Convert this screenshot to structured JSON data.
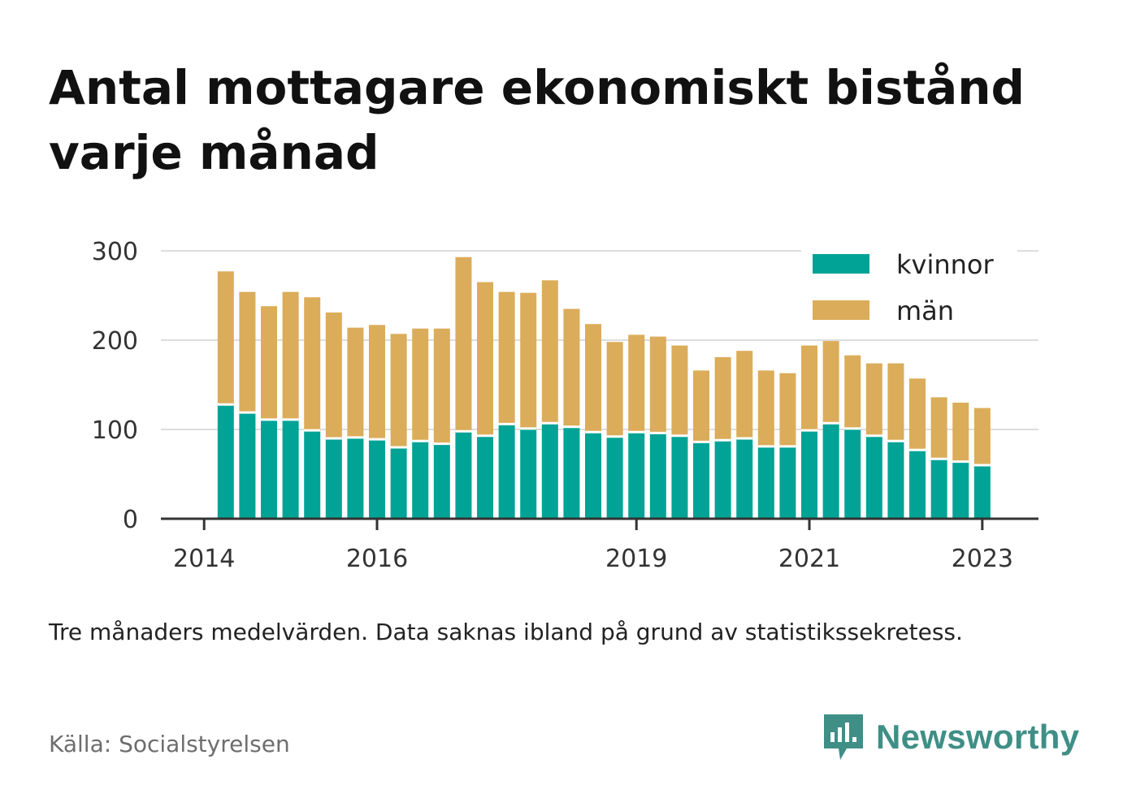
{
  "title": "Antal mottagare ekonomiskt bistånd varje månad",
  "note": "Tre månaders medelvärden. Data saknas ibland på grund av statistikssekretess.",
  "source": "Källa: Socialstyrelsen",
  "brand": {
    "name": "Newsworthy",
    "icon": "newsworthy-logo-icon",
    "color": "#3f8f86"
  },
  "chart_data": {
    "type": "bar",
    "stacked": true,
    "ylim": [
      0,
      300
    ],
    "y_ticks": [
      0,
      100,
      200,
      300
    ],
    "x_ticks": [
      {
        "label": "2014",
        "x": 2014.0
      },
      {
        "label": "2016",
        "x": 2016.0
      },
      {
        "label": "2019",
        "x": 2019.0
      },
      {
        "label": "2021",
        "x": 2021.0
      },
      {
        "label": "2023",
        "x": 2023.0
      }
    ],
    "x_range": [
      2013.5,
      2023.65
    ],
    "grid": true,
    "legend_position": "top-right",
    "x": [
      2014.25,
      2014.5,
      2014.75,
      2015.0,
      2015.25,
      2015.5,
      2015.75,
      2016.0,
      2016.25,
      2016.5,
      2016.75,
      2017.0,
      2017.25,
      2017.5,
      2017.75,
      2018.0,
      2018.25,
      2018.5,
      2018.75,
      2019.0,
      2019.25,
      2019.5,
      2019.75,
      2020.0,
      2020.25,
      2020.5,
      2020.75,
      2021.0,
      2021.25,
      2021.5,
      2021.75,
      2022.0,
      2022.25,
      2022.5,
      2022.75,
      2023.0
    ],
    "series": [
      {
        "name": "kvinnor",
        "color": "#00a396",
        "values": [
          128,
          119,
          111,
          111,
          99,
          90,
          91,
          89,
          80,
          87,
          84,
          98,
          93,
          106,
          101,
          107,
          103,
          97,
          92,
          97,
          96,
          93,
          86,
          88,
          90,
          81,
          81,
          99,
          107,
          101,
          93,
          87,
          77,
          67,
          64,
          60
        ]
      },
      {
        "name": "män",
        "color": "#dbac5a",
        "values": [
          149,
          135,
          127,
          143,
          149,
          141,
          123,
          128,
          127,
          126,
          129,
          195,
          172,
          148,
          152,
          160,
          132,
          121,
          106,
          109,
          108,
          101,
          80,
          93,
          98,
          85,
          82,
          95,
          92,
          82,
          81,
          87,
          80,
          69,
          66,
          64
        ]
      }
    ]
  }
}
